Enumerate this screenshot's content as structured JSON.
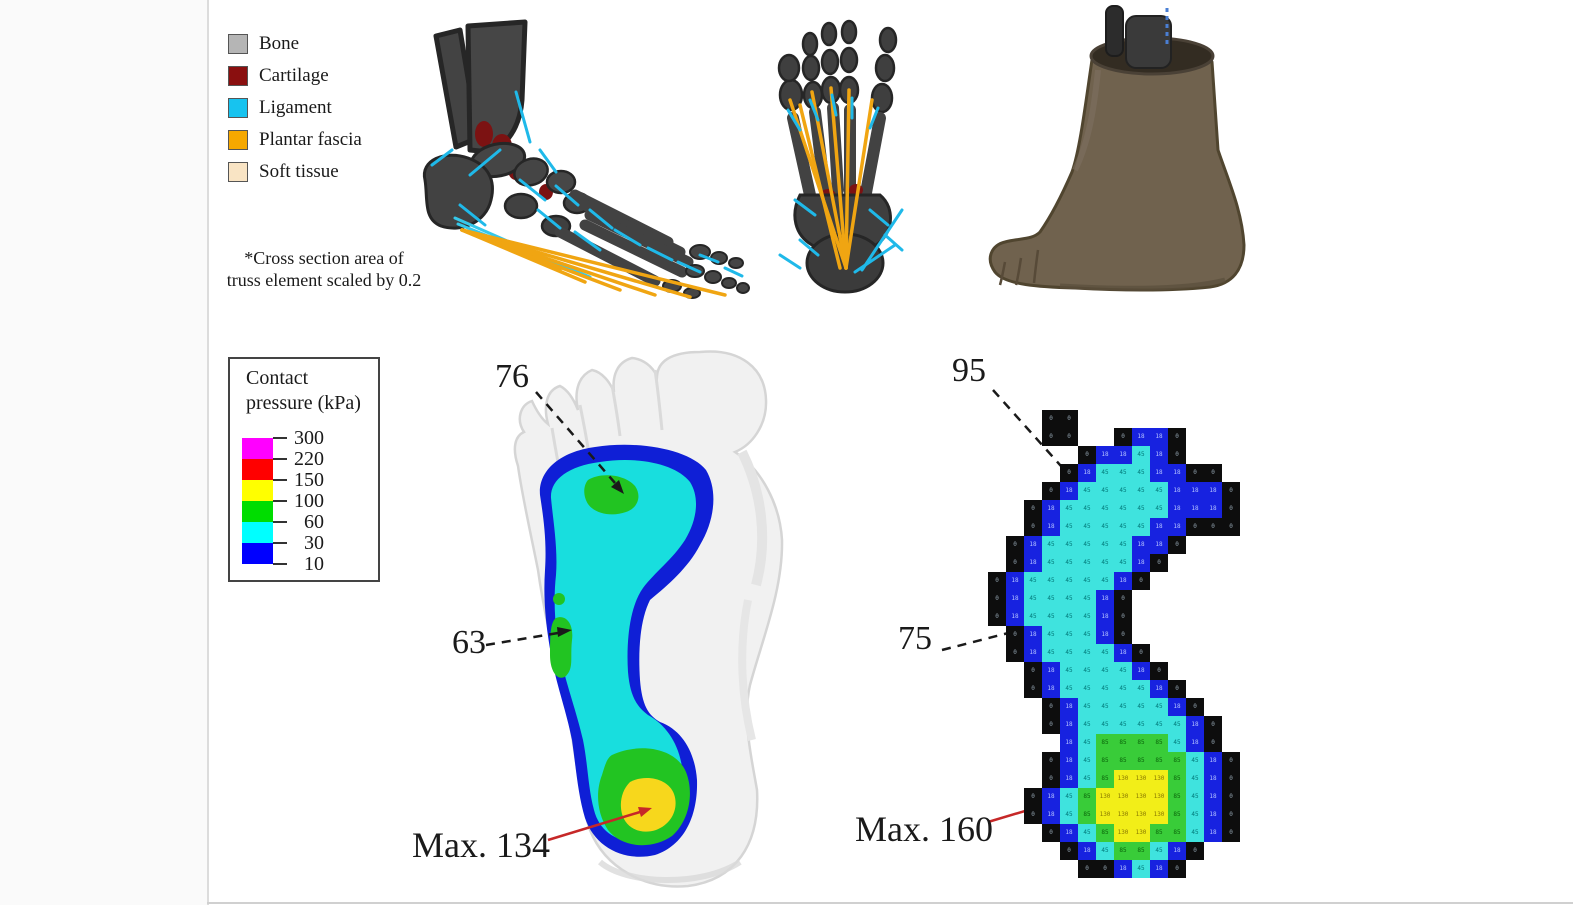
{
  "figure": {
    "model_legend": {
      "items": [
        {
          "label": "Bone",
          "color": "#b5b5b5"
        },
        {
          "label": "Cartilage",
          "color": "#8a0f0f"
        },
        {
          "label": "Ligament",
          "color": "#17c3ef"
        },
        {
          "label": "Plantar fascia",
          "color": "#f6a800"
        },
        {
          "label": "Soft tissue",
          "color": "#f9e4c4"
        }
      ],
      "note_line1": "*Cross section area of",
      "note_line2": "truss element scaled by 0.2"
    },
    "pressure_legend": {
      "title_line1": "Contact",
      "title_line2": "pressure (kPa)",
      "tick_labels": [
        "300",
        "220",
        "150",
        "100",
        "60",
        "30",
        "10"
      ],
      "segment_colors": [
        "#ff00ff",
        "#ff0000",
        "#ffff00",
        "#00dd00",
        "#00ffff",
        "#0000ff"
      ]
    },
    "simulated_map": {
      "label_76": "76",
      "label_63": "63",
      "label_max": "Max. 134"
    },
    "measured_map": {
      "label_95": "95",
      "label_75": "75",
      "label_max": "Max. 160",
      "grid_rows": [
        "...............",
        "...KK..........",
        "...KK..KBBK....",
        ".....KBBCBK....",
        "....KBCCCBBKK..",
        "...KBCCCCCBBBK.",
        "..KBCCCCCCBBBK.",
        "..KBCCCCCBBKKK.",
        ".KBCCCCCBBK....",
        ".KBCCCCCBK.....",
        "KBCCCCCBK......",
        "KBCCCCBK.......",
        "KBCCCCBK.......",
        ".KBCCCBK.......",
        ".KBCCCCBK......",
        "..KBCCCCBK.....",
        "..KBCCCCCBK....",
        "...KBCCCCCBK...",
        "...KBCCCCCCBK..",
        "....BCGGGGCBK..",
        "...KBCGGGGGCBK.",
        "...KBCGYYYGCBK.",
        "..KBCGYYYYGCBK.",
        "..KBCGYYYYGCBK.",
        "...KBCGYYGGCBK.",
        "....KBCGGCBK...",
        ".....KKBCBK...."
      ],
      "cell_colors": {
        "K": "#0d0d0d",
        "B": "#1722e0",
        "C": "#3fe3de",
        "G": "#39cc39",
        "Y": "#f2ee18"
      },
      "cell_values": {
        "K": "0",
        "B": "18",
        "C": "45",
        "G": "85",
        "Y": "130"
      },
      "cell_text_colors": {
        "K": "#93a3b0",
        "B": "#b4c2ff",
        "C": "#077",
        "G": "#0a640a",
        "Y": "#8a7a00"
      }
    }
  }
}
